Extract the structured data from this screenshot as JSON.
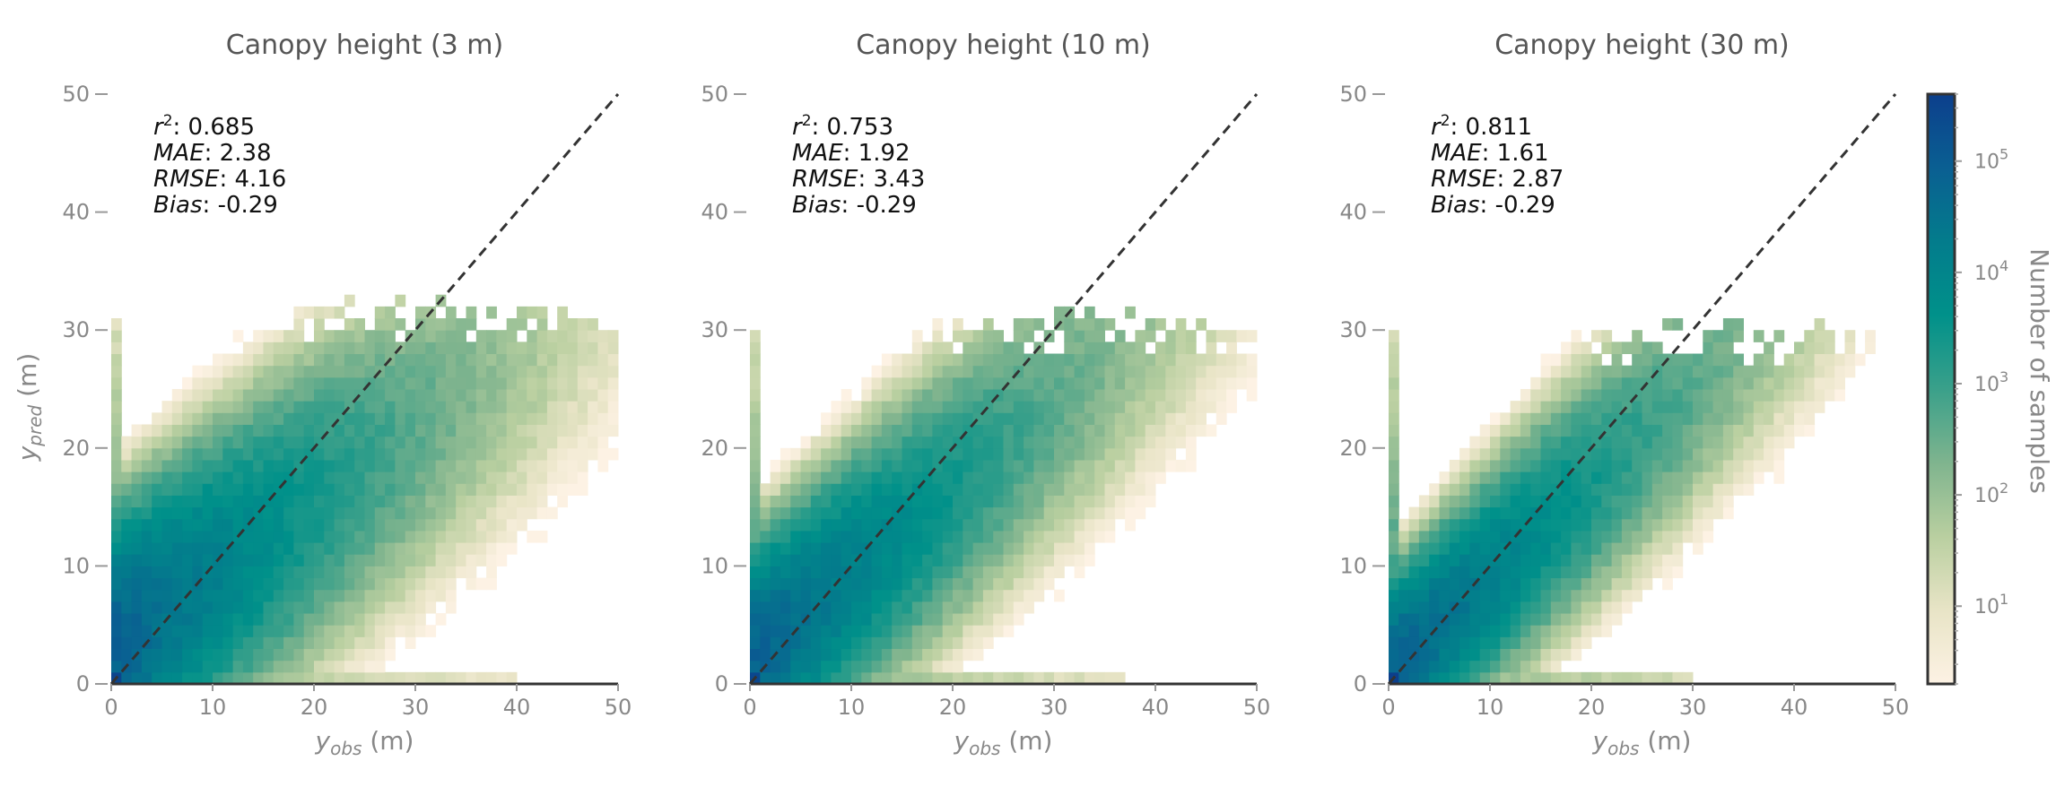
{
  "chart_data": {
    "type": "heatmap",
    "panels": [
      {
        "title": "Canopy height (3 m)",
        "xlabel_sym": "y",
        "xlabel_sub": "obs",
        "xlabel_unit": " (m)",
        "ylabel_sym": "y",
        "ylabel_sub": "pred",
        "ylabel_unit": " (m)",
        "show_ylabel": true,
        "xlim": [
          0,
          50
        ],
        "ylim": [
          0,
          50
        ],
        "xticks": [
          "0",
          "10",
          "20",
          "30",
          "40",
          "50"
        ],
        "yticks": [
          "0",
          "10",
          "20",
          "30",
          "40",
          "50"
        ],
        "identity_line": [
          [
            0,
            0
          ],
          [
            50,
            50
          ]
        ],
        "stats": [
          {
            "name": "r",
            "sup": "2",
            "value": ": 0.685"
          },
          {
            "name": "MAE",
            "sup": "",
            "value": ": 2.38"
          },
          {
            "name": "RMSE",
            "sup": "",
            "value": ": 4.16"
          },
          {
            "name": "Bias",
            "sup": "",
            "value": ": -0.29"
          }
        ],
        "density": {
          "slope": 0.62,
          "intercept": 3.0,
          "spread": 4.2,
          "ymax": 31,
          "xmax": 50,
          "bottom_row_x": 40
        }
      },
      {
        "title": "Canopy height (10 m)",
        "xlabel_sym": "y",
        "xlabel_sub": "obs",
        "xlabel_unit": " (m)",
        "ylabel_sym": "y",
        "ylabel_sub": "pred",
        "ylabel_unit": " (m)",
        "show_ylabel": false,
        "xlim": [
          0,
          50
        ],
        "ylim": [
          0,
          50
        ],
        "xticks": [
          "0",
          "10",
          "20",
          "30",
          "40",
          "50"
        ],
        "yticks": [
          "0",
          "10",
          "20",
          "30",
          "40",
          "50"
        ],
        "identity_line": [
          [
            0,
            0
          ],
          [
            50,
            50
          ]
        ],
        "stats": [
          {
            "name": "r",
            "sup": "2",
            "value": ": 0.753"
          },
          {
            "name": "MAE",
            "sup": "",
            "value": ": 1.92"
          },
          {
            "name": "RMSE",
            "sup": "",
            "value": ": 3.43"
          },
          {
            "name": "Bias",
            "sup": "",
            "value": ": -0.29"
          }
        ],
        "density": {
          "slope": 0.72,
          "intercept": 2.0,
          "spread": 3.5,
          "ymax": 30,
          "xmax": 49,
          "bottom_row_x": 37
        }
      },
      {
        "title": "Canopy height (30 m)",
        "xlabel_sym": "y",
        "xlabel_sub": "obs",
        "xlabel_unit": " (m)",
        "ylabel_sym": "y",
        "ylabel_sub": "pred",
        "ylabel_unit": " (m)",
        "show_ylabel": false,
        "xlim": [
          0,
          50
        ],
        "ylim": [
          0,
          50
        ],
        "xticks": [
          "0",
          "10",
          "20",
          "30",
          "40",
          "50"
        ],
        "yticks": [
          "0",
          "10",
          "20",
          "30",
          "40",
          "50"
        ],
        "identity_line": [
          [
            0,
            0
          ],
          [
            50,
            50
          ]
        ],
        "stats": [
          {
            "name": "r",
            "sup": "2",
            "value": ": 0.811"
          },
          {
            "name": "MAE",
            "sup": "",
            "value": ": 1.61"
          },
          {
            "name": "RMSE",
            "sup": "",
            "value": ": 2.87"
          },
          {
            "name": "Bias",
            "sup": "",
            "value": ": -0.29"
          }
        ],
        "density": {
          "slope": 0.8,
          "intercept": 1.0,
          "spread": 2.9,
          "ymax": 29,
          "xmax": 47,
          "bottom_row_x": 30
        }
      }
    ],
    "colorbar": {
      "label": "Number of samples",
      "scale": "log",
      "range": [
        2,
        400000
      ],
      "ticks": [
        {
          "base": "10",
          "exp": "1",
          "value": 10
        },
        {
          "base": "10",
          "exp": "2",
          "value": 100
        },
        {
          "base": "10",
          "exp": "3",
          "value": 1000
        },
        {
          "base": "10",
          "exp": "4",
          "value": 10000
        },
        {
          "base": "10",
          "exp": "5",
          "value": 100000
        }
      ],
      "colormap": [
        "#fdf2e4",
        "#e8e4c6",
        "#b9cfa0",
        "#7fb48e",
        "#3aa08a",
        "#00918a",
        "#037c8c",
        "#0a5f92",
        "#0c3f8c"
      ]
    }
  }
}
